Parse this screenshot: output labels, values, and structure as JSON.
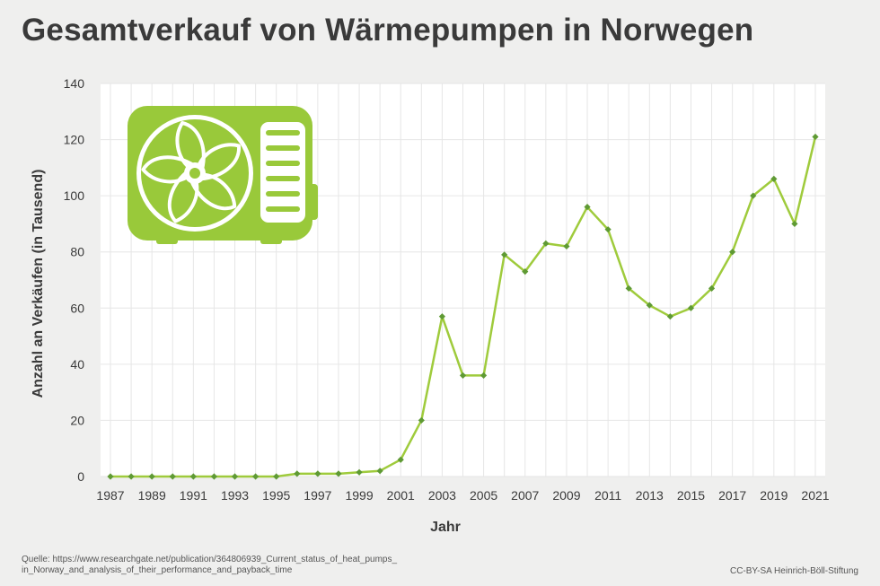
{
  "title": "Gesamtverkauf von Wärmepumpen in Norwegen",
  "source": "Quelle: https://www.researchgate.net/publication/364806939_Current_status_of_heat_pumps_in_Norway_and_analysis_of_their_performance_and_payback_time",
  "credit": "CC-BY-SA Heinrich-Böll-Stiftung",
  "icon": "heat-pump-icon",
  "colors": {
    "line": "#9fcb3c",
    "marker": "#5f9a34",
    "icon": "#99c93a",
    "grid": "#e6e6e6",
    "plot_bg": "#ffffff",
    "page_bg": "#efefee"
  },
  "chart_data": {
    "type": "line",
    "title": "Gesamtverkauf von Wärmepumpen in Norwegen",
    "xlabel": "Jahr",
    "ylabel": "Anzahl an Verkäufen (in Tausend)",
    "ylim": [
      0,
      140
    ],
    "yticks": [
      0,
      20,
      40,
      60,
      80,
      100,
      120,
      140
    ],
    "xticks": [
      1987,
      1989,
      1991,
      1993,
      1995,
      1997,
      1999,
      2001,
      2003,
      2005,
      2007,
      2009,
      2011,
      2013,
      2015,
      2017,
      2019,
      2021
    ],
    "grid": true,
    "x": [
      1987,
      1988,
      1989,
      1990,
      1991,
      1992,
      1993,
      1994,
      1995,
      1996,
      1997,
      1998,
      1999,
      2000,
      2001,
      2002,
      2003,
      2004,
      2005,
      2006,
      2007,
      2008,
      2009,
      2010,
      2011,
      2012,
      2013,
      2014,
      2015,
      2016,
      2017,
      2018,
      2019,
      2020,
      2021
    ],
    "series": [
      {
        "values": [
          0,
          0,
          0,
          0,
          0,
          0,
          0,
          0,
          0,
          1,
          1,
          1,
          1.5,
          2,
          6,
          20,
          57,
          36,
          36,
          79,
          73,
          83,
          82,
          96,
          88,
          67,
          61,
          57,
          60,
          67,
          80,
          100,
          106,
          90,
          121
        ]
      }
    ]
  }
}
